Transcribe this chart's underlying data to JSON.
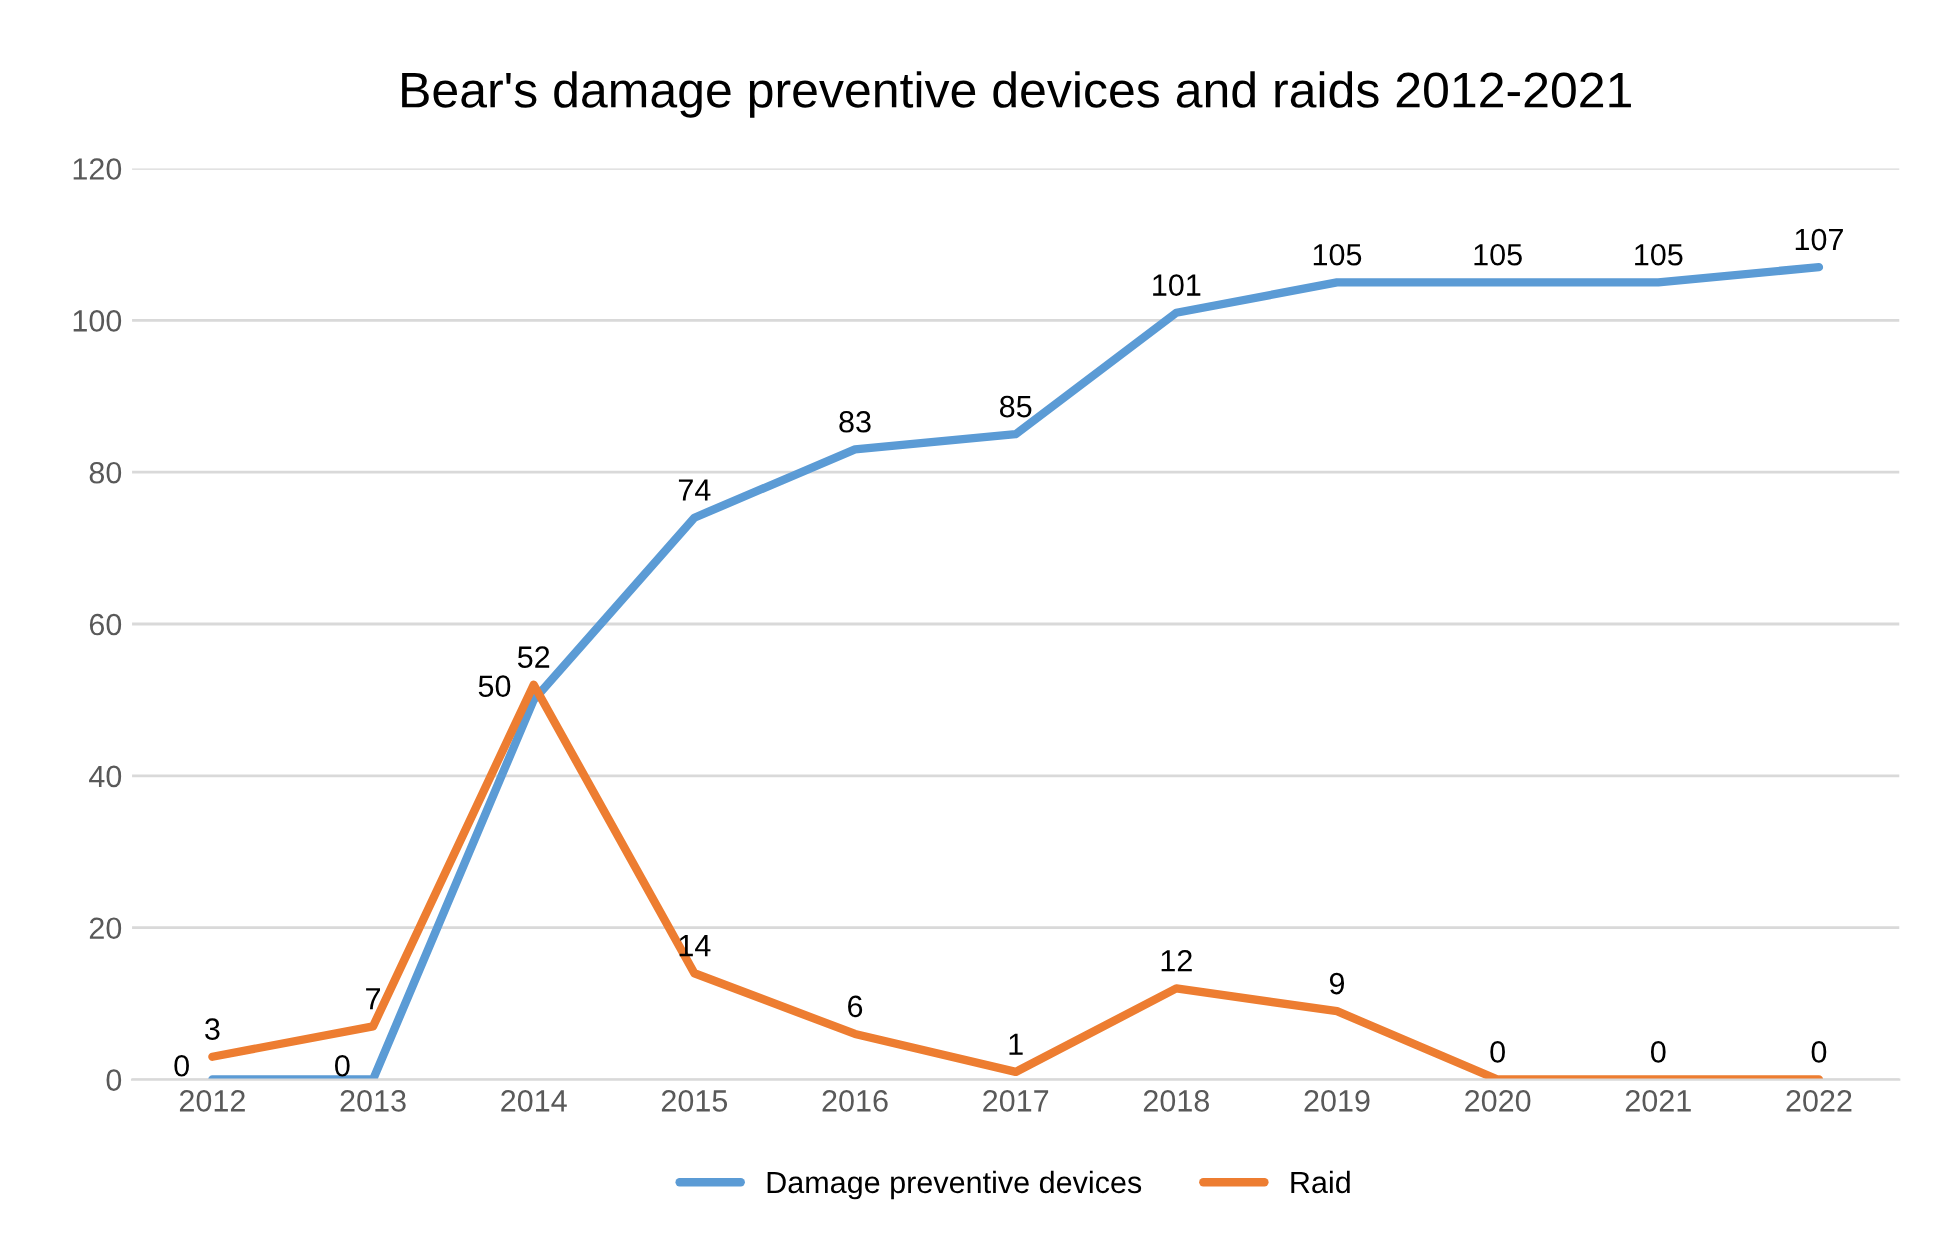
{
  "chart_data": {
    "type": "line",
    "title": "Bear's damage preventive devices and raids 2012-2021",
    "categories": [
      "2012",
      "2013",
      "2014",
      "2015",
      "2016",
      "2017",
      "2018",
      "2019",
      "2020",
      "2021",
      "2022"
    ],
    "series": [
      {
        "name": "Damage preventive devices",
        "color": "#5b9bd5",
        "values": [
          0,
          0,
          50,
          74,
          83,
          85,
          101,
          105,
          105,
          105,
          107
        ]
      },
      {
        "name": "Raid",
        "color": "#ed7d31",
        "values": [
          3,
          7,
          52,
          14,
          6,
          1,
          12,
          9,
          0,
          0,
          0
        ]
      }
    ],
    "ylim": [
      0,
      120
    ],
    "yticks": [
      0,
      20,
      40,
      60,
      80,
      100,
      120
    ],
    "grid": "y",
    "legend": "bottom",
    "data_labels": true,
    "line_style": "solid",
    "marker": "none"
  }
}
